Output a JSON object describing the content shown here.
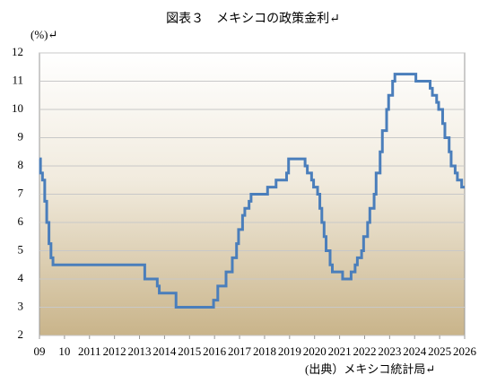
{
  "chart_data": {
    "type": "step-line",
    "title": "図表３　メキシコの政策金利↵",
    "y_label": "(%)↵",
    "source": "(出典）メキシコ統計局↵",
    "xlim": [
      2009,
      2026
    ],
    "xticks": [
      {
        "value": 2009,
        "label": "09"
      },
      {
        "value": 2010,
        "label": "10"
      },
      2011,
      2012,
      2013,
      2014,
      2015,
      2016,
      2017,
      2018,
      2019,
      2020,
      2021,
      2022,
      2023,
      2024,
      2025,
      2026
    ],
    "ylim": [
      2,
      12
    ],
    "yticks": [
      2,
      3,
      4,
      5,
      6,
      7,
      8,
      9,
      10,
      11,
      12
    ],
    "grid": true,
    "series": [
      {
        "color": "#4a7ebb",
        "x": [
          2009.0,
          2009.04,
          2009.12,
          2009.21,
          2009.29,
          2009.38,
          2009.46,
          2009.54,
          2013.21,
          2013.71,
          2013.79,
          2014.46,
          2015.96,
          2016.13,
          2016.46,
          2016.71,
          2016.88,
          2016.96,
          2017.12,
          2017.21,
          2017.38,
          2017.46,
          2018.12,
          2018.46,
          2018.88,
          2018.96,
          2019.62,
          2019.71,
          2019.88,
          2019.96,
          2020.12,
          2020.21,
          2020.29,
          2020.38,
          2020.46,
          2020.62,
          2020.71,
          2021.12,
          2021.46,
          2021.62,
          2021.71,
          2021.88,
          2021.96,
          2022.12,
          2022.21,
          2022.38,
          2022.46,
          2022.62,
          2022.71,
          2022.88,
          2022.96,
          2023.12,
          2023.21,
          2024.05,
          2024.62,
          2024.71,
          2024.88,
          2024.96,
          2025.12,
          2025.21,
          2025.38,
          2025.46,
          2025.62,
          2025.71,
          2025.88,
          2026.0
        ],
        "values": [
          8.25,
          7.75,
          7.5,
          6.75,
          6.0,
          5.25,
          4.75,
          4.5,
          4.0,
          3.75,
          3.5,
          3.0,
          3.25,
          3.75,
          4.25,
          4.75,
          5.25,
          5.75,
          6.25,
          6.5,
          6.75,
          7.0,
          7.25,
          7.5,
          7.75,
          8.25,
          8.0,
          7.75,
          7.5,
          7.25,
          7.0,
          6.5,
          6.0,
          5.5,
          5.0,
          4.5,
          4.25,
          4.0,
          4.25,
          4.5,
          4.75,
          5.0,
          5.5,
          6.0,
          6.5,
          7.0,
          7.75,
          8.5,
          9.25,
          10.0,
          10.5,
          11.0,
          11.25,
          11.0,
          10.75,
          10.5,
          10.25,
          10.0,
          9.5,
          9.0,
          8.5,
          8.0,
          7.75,
          7.5,
          7.25,
          7.25
        ]
      }
    ]
  }
}
